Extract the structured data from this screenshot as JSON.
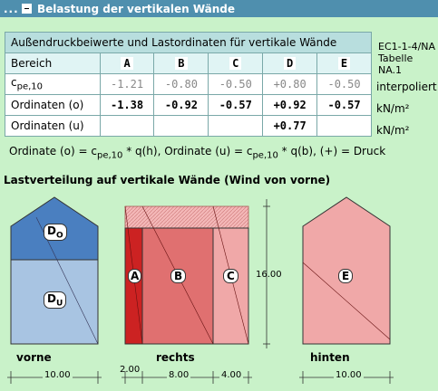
{
  "window": {
    "title": "Belastung der vertikalen Wände",
    "dots": "..."
  },
  "table": {
    "caption": "Außendruckbeiwerte und Lastordinaten für vertikale Wände",
    "header_label": "Bereich",
    "columns": [
      "A",
      "B",
      "C",
      "D",
      "E"
    ],
    "rows": [
      {
        "label": "c",
        "sub": "pe,10",
        "values": [
          "-1.21",
          "-0.80",
          "-0.50",
          "+0.80",
          "-0.50"
        ],
        "unit": "interpoliert",
        "style": "grey"
      },
      {
        "label": "Ordinaten (o)",
        "values": [
          "-1.38",
          "-0.92",
          "-0.57",
          "+0.92",
          "-0.57"
        ],
        "unit": "kN/m²",
        "style": "bold"
      },
      {
        "label": "Ordinaten (u)",
        "values": [
          "",
          "",
          "",
          "+0.77",
          ""
        ],
        "unit": "kN/m²",
        "style": "bold"
      }
    ]
  },
  "norm": {
    "line1": "EC1-1-4/NA",
    "line2": "Tabelle NA.1"
  },
  "formula": {
    "part1": "Ordinate (o) = c",
    "sub1": "pe,10",
    "part2": " * q(h),  Ordinate (u) = c",
    "sub2": "pe,10",
    "part3": " * q(b),  (+) = Druck"
  },
  "section_title": "Lastverteilung auf vertikale Wände (Wind von vorne)",
  "views": {
    "vorne": {
      "label": "vorne",
      "zones": [
        "D",
        "D"
      ],
      "zone_subs": [
        "O",
        "U"
      ],
      "dim": "10.00"
    },
    "rechts": {
      "label": "rechts",
      "zones": [
        "A",
        "B",
        "C"
      ],
      "dims": [
        "2.00",
        "8.00",
        "4.00"
      ],
      "height": "16.00"
    },
    "hinten": {
      "label": "hinten",
      "zone": "E",
      "dim": "10.00"
    }
  },
  "colors": {
    "titlebar": "#4f8fae",
    "background": "#c9f2c9",
    "d_dark": "#4a7fc0",
    "d_light": "#a8c4e2",
    "a_zone": "#cc2222",
    "b_zone": "#e07070",
    "c_zone": "#f0a8a8",
    "e_zone": "#f0a8a8"
  }
}
